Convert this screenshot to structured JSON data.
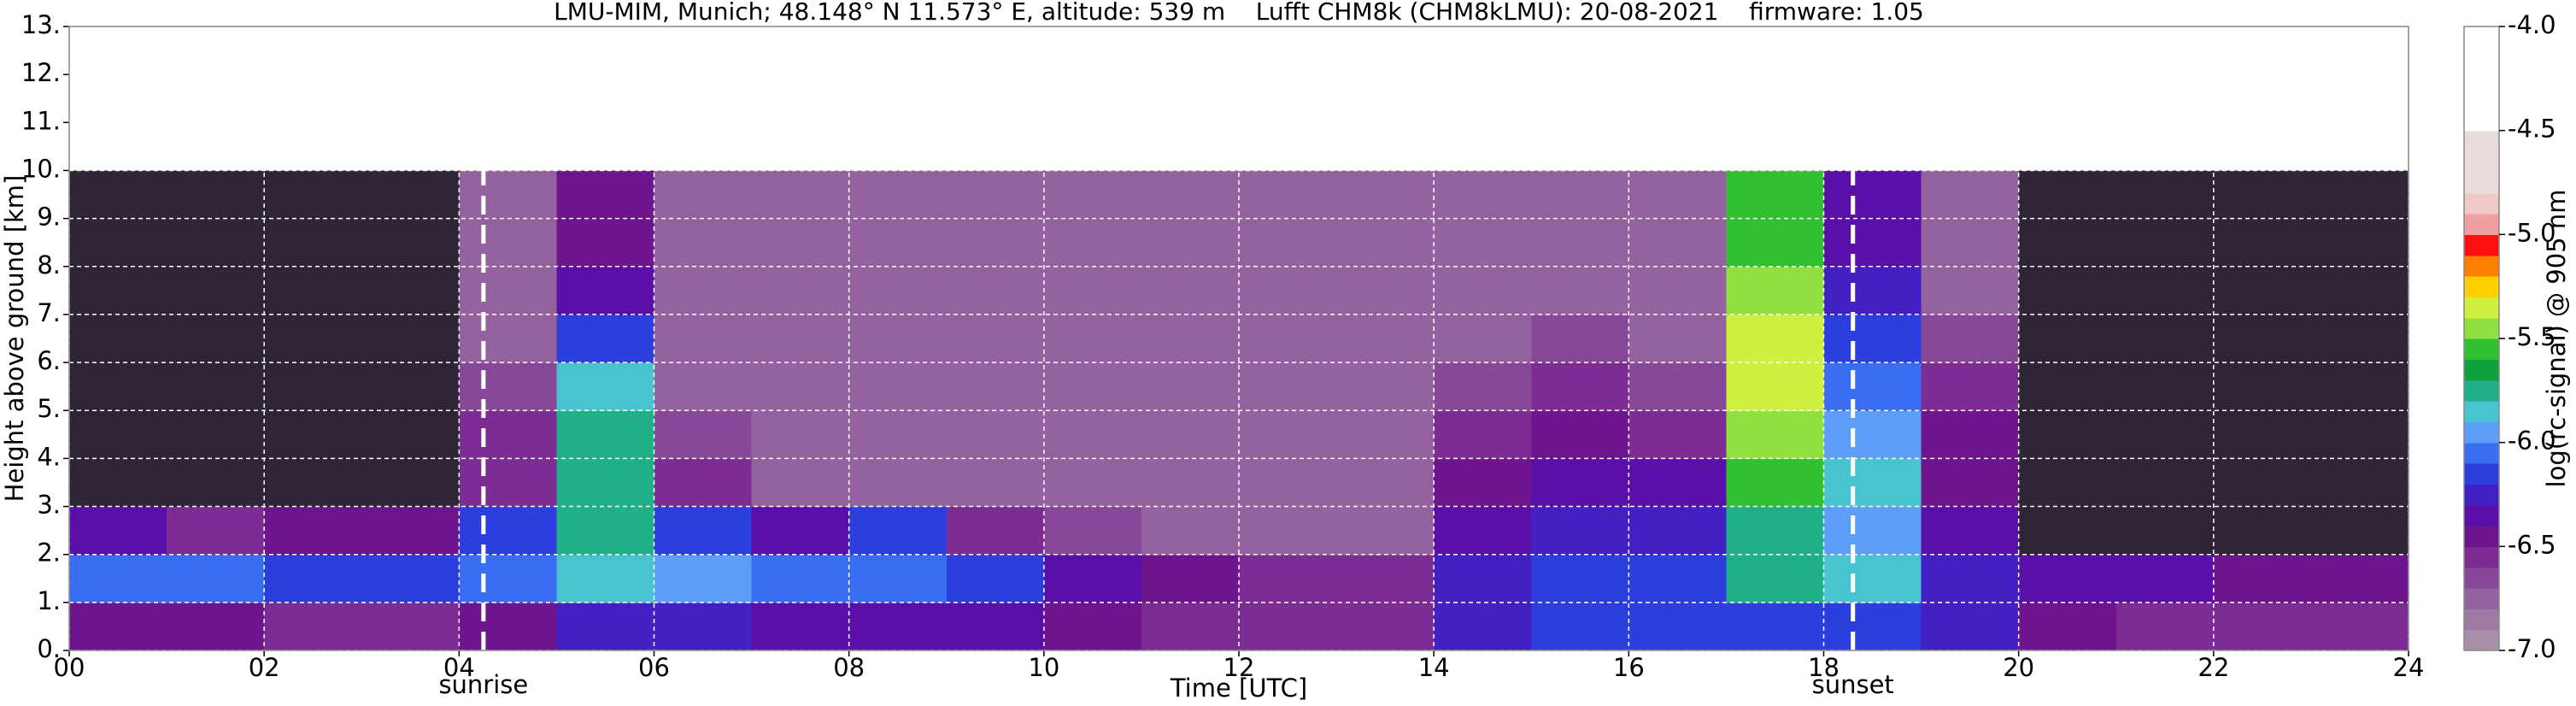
{
  "chart_data": {
    "type": "heatmap",
    "title": "LMU-MIM, Munich; 48.148° N 11.573° E, altitude: 539 m    Lufft CHM8k (CHM8kLMU): 20-08-2021    firmware: 1.05",
    "x_label": "Time [UTC]",
    "y_label": "Height above ground [km]",
    "colorbar_label": "log(rc-signal) @ 905 nm",
    "xlim": [
      0,
      24
    ],
    "xticks": [
      {
        "value": 0,
        "label": "00"
      },
      {
        "value": 2,
        "label": "02"
      },
      {
        "value": 4,
        "label": "04"
      },
      {
        "value": 6,
        "label": "06"
      },
      {
        "value": 8,
        "label": "08"
      },
      {
        "value": 10,
        "label": "10"
      },
      {
        "value": 12,
        "label": "12"
      },
      {
        "value": 14,
        "label": "14"
      },
      {
        "value": 16,
        "label": "16"
      },
      {
        "value": 18,
        "label": "18"
      },
      {
        "value": 20,
        "label": "20"
      },
      {
        "value": 22,
        "label": "22"
      },
      {
        "value": 24,
        "label": "24"
      }
    ],
    "ylim": [
      0,
      13
    ],
    "yticks": [
      {
        "value": 0,
        "label": "0."
      },
      {
        "value": 1,
        "label": "1."
      },
      {
        "value": 2,
        "label": "2."
      },
      {
        "value": 3,
        "label": "3."
      },
      {
        "value": 4,
        "label": "4."
      },
      {
        "value": 5,
        "label": "5."
      },
      {
        "value": 6,
        "label": "6."
      },
      {
        "value": 7,
        "label": "7."
      },
      {
        "value": 8,
        "label": "8."
      },
      {
        "value": 9,
        "label": "9."
      },
      {
        "value": 10,
        "label": "10."
      },
      {
        "value": 11,
        "label": "11."
      },
      {
        "value": 12,
        "label": "12."
      },
      {
        "value": 13,
        "label": "13."
      }
    ],
    "clim": [
      -7.0,
      -4.0
    ],
    "cticks": [
      {
        "value": -4.0,
        "label": "-4.0"
      },
      {
        "value": -4.5,
        "label": "-4.5"
      },
      {
        "value": -5.0,
        "label": "-5.0"
      },
      {
        "value": -5.5,
        "label": "-5.5"
      },
      {
        "value": -6.0,
        "label": "-6.0"
      },
      {
        "value": -6.5,
        "label": "-6.5"
      },
      {
        "value": -7.0,
        "label": "-7.0"
      }
    ],
    "colorscale": [
      "#a890a8",
      "#9e7aa2",
      "#94629e",
      "#884898",
      "#7c2c92",
      "#6e148c",
      "#5a10a8",
      "#4220c4",
      "#2c3ede",
      "#3a6ef2",
      "#5c9ef8",
      "#48c4d0",
      "#20b088",
      "#10a040",
      "#30c030",
      "#90e040",
      "#d0f040",
      "#ffd000",
      "#ff8000",
      "#ff1010",
      "#f0a0a0",
      "#f0c8c8",
      "#ebdcdc",
      "#ebdcdc",
      "#ebdcdc",
      "#ffffff",
      "#ffffff",
      "#ffffff",
      "#ffffff",
      "#ffffff"
    ],
    "under_color": "#2e2636",
    "grid": true,
    "grid_color": "#ffffff",
    "xbins": [
      0,
      1,
      2,
      3,
      4,
      5,
      6,
      7,
      8,
      9,
      10,
      11,
      12,
      13,
      14,
      15,
      16,
      17,
      18,
      19,
      20,
      21,
      22,
      23,
      24
    ],
    "ybins": [
      0,
      1,
      2,
      3,
      4,
      5,
      6,
      7,
      8,
      9,
      10
    ],
    "z": [
      [
        -6.5,
        -6.5,
        -6.6,
        -6.6,
        -6.5,
        -6.3,
        -6.3,
        -6.4,
        -6.4,
        -6.4,
        -6.5,
        -6.6,
        -6.6,
        -6.6,
        -6.3,
        -6.2,
        -6.2,
        -6.2,
        -6.2,
        -6.3,
        -6.5,
        -6.6,
        -6.6,
        -6.6
      ],
      [
        -6.1,
        -6.1,
        -6.2,
        -6.2,
        -6.1,
        -5.9,
        -6.0,
        -6.1,
        -6.1,
        -6.2,
        -6.4,
        -6.5,
        -6.6,
        -6.6,
        -6.3,
        -6.2,
        -6.2,
        -5.8,
        -5.9,
        -6.3,
        -6.4,
        -6.4,
        -6.5,
        -6.5
      ],
      [
        -6.4,
        -6.6,
        -6.5,
        -6.5,
        -6.2,
        -5.8,
        -6.2,
        -6.4,
        -6.2,
        -6.6,
        -6.7,
        -6.8,
        -6.8,
        -6.8,
        -6.4,
        -6.3,
        -6.3,
        -5.8,
        -6.0,
        -6.4,
        -7.2,
        -7.2,
        -7.2,
        -7.2
      ],
      [
        -7.2,
        -7.2,
        -7.2,
        -7.2,
        -6.6,
        -5.8,
        -6.6,
        -6.8,
        -6.8,
        -6.8,
        -6.8,
        -6.8,
        -6.8,
        -6.8,
        -6.5,
        -6.4,
        -6.4,
        -5.6,
        -5.9,
        -6.5,
        -7.2,
        -7.2,
        -7.2,
        -7.2
      ],
      [
        -7.2,
        -7.2,
        -7.2,
        -7.2,
        -6.6,
        -5.8,
        -6.7,
        -6.8,
        -6.8,
        -6.8,
        -6.8,
        -6.8,
        -6.8,
        -6.8,
        -6.6,
        -6.5,
        -6.6,
        -5.5,
        -6.0,
        -6.5,
        -7.2,
        -7.2,
        -7.2,
        -7.2
      ],
      [
        -7.2,
        -7.2,
        -7.2,
        -7.2,
        -6.7,
        -5.9,
        -6.8,
        -6.8,
        -6.8,
        -6.8,
        -6.8,
        -6.8,
        -6.8,
        -6.8,
        -6.7,
        -6.6,
        -6.7,
        -5.4,
        -6.1,
        -6.6,
        -7.2,
        -7.2,
        -7.2,
        -7.2
      ],
      [
        -7.2,
        -7.2,
        -7.2,
        -7.2,
        -6.8,
        -6.2,
        -6.8,
        -6.8,
        -6.8,
        -6.8,
        -6.8,
        -6.8,
        -6.8,
        -6.8,
        -6.8,
        -6.7,
        -6.8,
        -5.4,
        -6.2,
        -6.7,
        -7.2,
        -7.2,
        -7.2,
        -7.2
      ],
      [
        -7.2,
        -7.2,
        -7.2,
        -7.2,
        -6.8,
        -6.4,
        -6.8,
        -6.8,
        -6.8,
        -6.8,
        -6.8,
        -6.8,
        -6.8,
        -6.8,
        -6.8,
        -6.8,
        -6.8,
        -5.5,
        -6.3,
        -6.8,
        -7.2,
        -7.2,
        -7.2,
        -7.2
      ],
      [
        -7.2,
        -7.2,
        -7.2,
        -7.2,
        -6.8,
        -6.5,
        -6.8,
        -6.8,
        -6.8,
        -6.8,
        -6.8,
        -6.8,
        -6.8,
        -6.8,
        -6.8,
        -6.8,
        -6.8,
        -5.6,
        -6.4,
        -6.8,
        -7.2,
        -7.2,
        -7.2,
        -7.2
      ],
      [
        -7.2,
        -7.2,
        -7.2,
        -7.2,
        -6.8,
        -6.5,
        -6.8,
        -6.8,
        -6.8,
        -6.8,
        -6.8,
        -6.8,
        -6.8,
        -6.8,
        -6.8,
        -6.8,
        -6.8,
        -5.6,
        -6.4,
        -6.8,
        -7.2,
        -7.2,
        -7.2,
        -7.2
      ]
    ],
    "annotations": [
      {
        "x": 4.25,
        "label": "sunrise"
      },
      {
        "x": 18.3,
        "label": "sunset"
      }
    ]
  }
}
